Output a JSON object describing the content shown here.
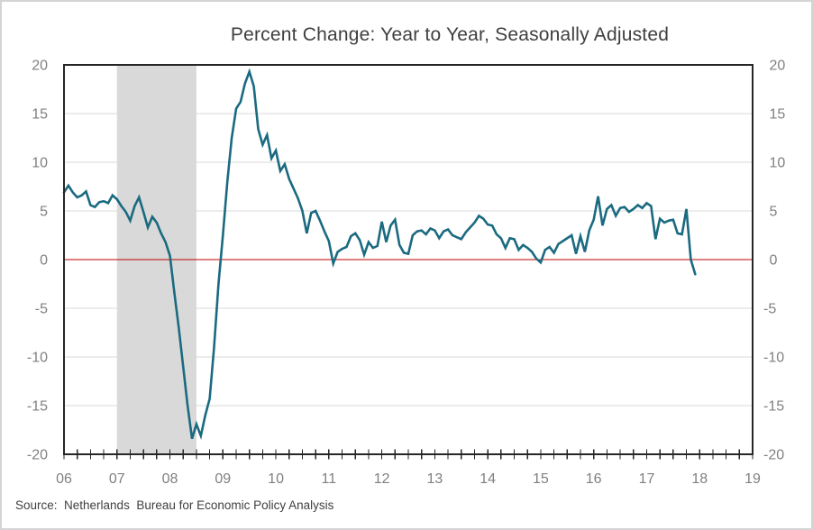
{
  "title": "Percent Change: Year to Year, Seasonally Adjusted",
  "source_note": "Source:  Netherlands  Bureau for Economic Policy Analysis",
  "colors": {
    "window_border": "#d4d4d4",
    "title_text": "#3f3f3f",
    "source_text": "#3f3f3f"
  },
  "chart_data": {
    "type": "line",
    "title": "Percent Change: Year to Year, Seasonally Adjusted",
    "x_axis": {
      "start_year": 2006,
      "end_year": 2019,
      "tick_labels": [
        "06",
        "07",
        "08",
        "09",
        "10",
        "11",
        "12",
        "13",
        "14",
        "15",
        "16",
        "17",
        "18",
        "19"
      ],
      "minor_ticks_per_year": 4
    },
    "y_axis": {
      "min": -20,
      "max": 20,
      "ticks": [
        -20,
        -15,
        -10,
        -5,
        0,
        5,
        10,
        15,
        20
      ],
      "label_sides": "both"
    },
    "grid_on": true,
    "grid_color": "#d9d9d9",
    "axis_color": "#262626",
    "tick_label_color": "#808080",
    "zero_line": {
      "value": 0,
      "color": "#c00000"
    },
    "recession_band": {
      "start": 2007.0,
      "end": 2008.5,
      "color": "#d9d9d9"
    },
    "legend": "none",
    "series": [
      {
        "color": "#1a6a80",
        "start": "2006-01",
        "frequency": "monthly",
        "values": [
          6.9,
          7.6,
          6.9,
          6.4,
          6.6,
          7.0,
          5.6,
          5.4,
          5.9,
          6.0,
          5.8,
          6.6,
          6.2,
          5.5,
          4.9,
          4.0,
          5.5,
          6.4,
          4.9,
          3.3,
          4.4,
          3.8,
          2.7,
          1.8,
          0.4,
          -3.4,
          -7.0,
          -11.0,
          -15.0,
          -18.4,
          -16.9,
          -18.1,
          -16.0,
          -14.3,
          -9.0,
          -2.5,
          2.5,
          8.0,
          12.5,
          15.5,
          16.2,
          18.1,
          19.3,
          17.8,
          13.4,
          11.8,
          12.8,
          10.4,
          11.2,
          9.1,
          9.8,
          8.3,
          7.3,
          6.3,
          5.0,
          2.7,
          4.8,
          5.0,
          4.0,
          2.9,
          1.9,
          -0.4,
          0.8,
          1.1,
          1.3,
          2.4,
          2.7,
          2.0,
          0.5,
          1.8,
          1.2,
          1.4,
          3.9,
          1.8,
          3.5,
          4.1,
          1.5,
          0.7,
          0.6,
          2.5,
          2.9,
          3.0,
          2.6,
          3.2,
          3.0,
          2.2,
          2.9,
          3.1,
          2.5,
          2.3,
          2.1,
          2.8,
          3.3,
          3.8,
          4.5,
          4.2,
          3.6,
          3.5,
          2.6,
          2.2,
          1.2,
          2.2,
          2.1,
          1.0,
          1.5,
          1.2,
          0.8,
          0.1,
          -0.3,
          1.0,
          1.3,
          0.7,
          1.6,
          1.9,
          2.2,
          2.5,
          0.6,
          2.4,
          0.8,
          3.0,
          4.1,
          6.5,
          3.5,
          5.2,
          5.6,
          4.5,
          5.3,
          5.4,
          4.9,
          5.2,
          5.6,
          5.3,
          5.8,
          5.5,
          2.1,
          4.2,
          3.8,
          4.0,
          4.1,
          2.7,
          2.6,
          5.2,
          0.0,
          -1.5
        ]
      }
    ]
  }
}
